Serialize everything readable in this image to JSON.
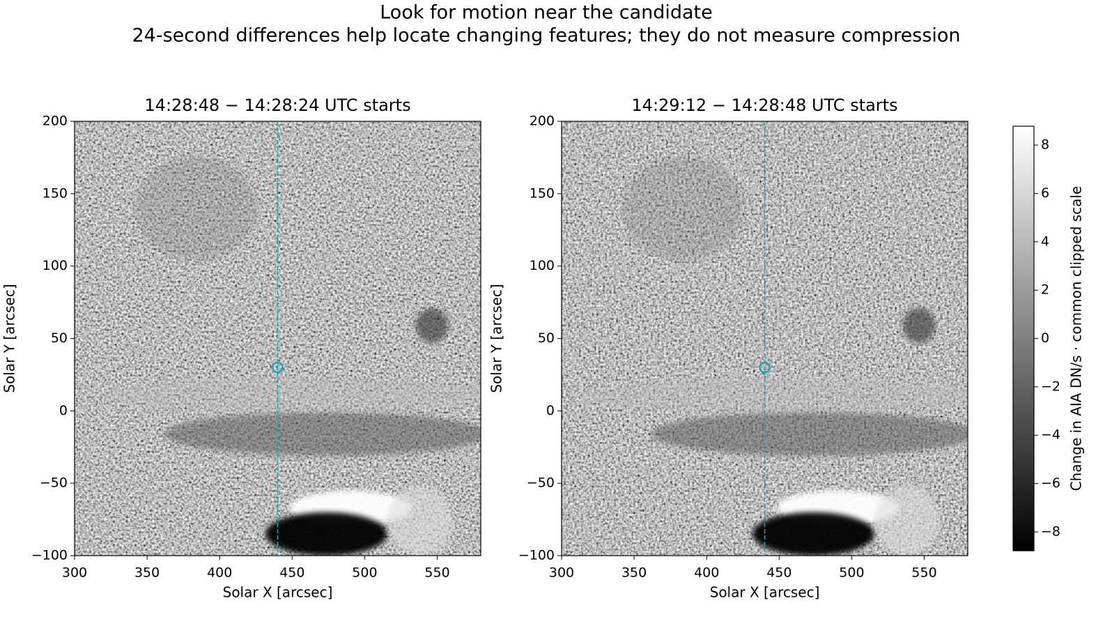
{
  "title": "Look for motion near the candidate",
  "subtitle": "24-second differences help locate changing features; they do not measure compression",
  "chart_data": [
    {
      "type": "image",
      "title": "14:28:48 − 14:28:24 UTC starts",
      "xlabel": "Solar X [arcsec]",
      "ylabel": "Solar Y [arcsec]",
      "xlim": [
        300,
        580
      ],
      "ylim": [
        -100,
        200
      ],
      "xticks": [
        300,
        350,
        400,
        450,
        500,
        550
      ],
      "yticks": [
        {
          "value": -100,
          "label": "−100"
        },
        {
          "value": -50,
          "label": "−50"
        },
        0,
        50,
        100,
        150,
        200
      ],
      "reference_line_x": 440,
      "candidate": {
        "x": 440,
        "y": 30
      },
      "marker_color": "#1fa3b4"
    },
    {
      "type": "image",
      "title": "14:29:12 − 14:28:48 UTC starts",
      "xlabel": "Solar X [arcsec]",
      "ylabel": "Solar Y [arcsec]",
      "xlim": [
        300,
        580
      ],
      "ylim": [
        -100,
        200
      ],
      "xticks": [
        300,
        350,
        400,
        450,
        500,
        550
      ],
      "yticks": [
        {
          "value": -100,
          "label": "−100"
        },
        {
          "value": -50,
          "label": "−50"
        },
        0,
        50,
        100,
        150,
        200
      ],
      "reference_line_x": 440,
      "candidate": {
        "x": 440,
        "y": 30
      },
      "marker_color": "#1fa3b4"
    }
  ],
  "colorbar": {
    "label": "Change in AIA DN/s · common clipped scale",
    "lim": [
      -8.78,
      8.78
    ],
    "ticks": [
      {
        "value": -8,
        "label": "−8"
      },
      {
        "value": -6,
        "label": "−6"
      },
      {
        "value": -4,
        "label": "−4"
      },
      {
        "value": -2,
        "label": "−2"
      },
      0,
      2,
      4,
      6,
      8
    ],
    "colormap": [
      "#000000",
      "#ffffff"
    ]
  }
}
